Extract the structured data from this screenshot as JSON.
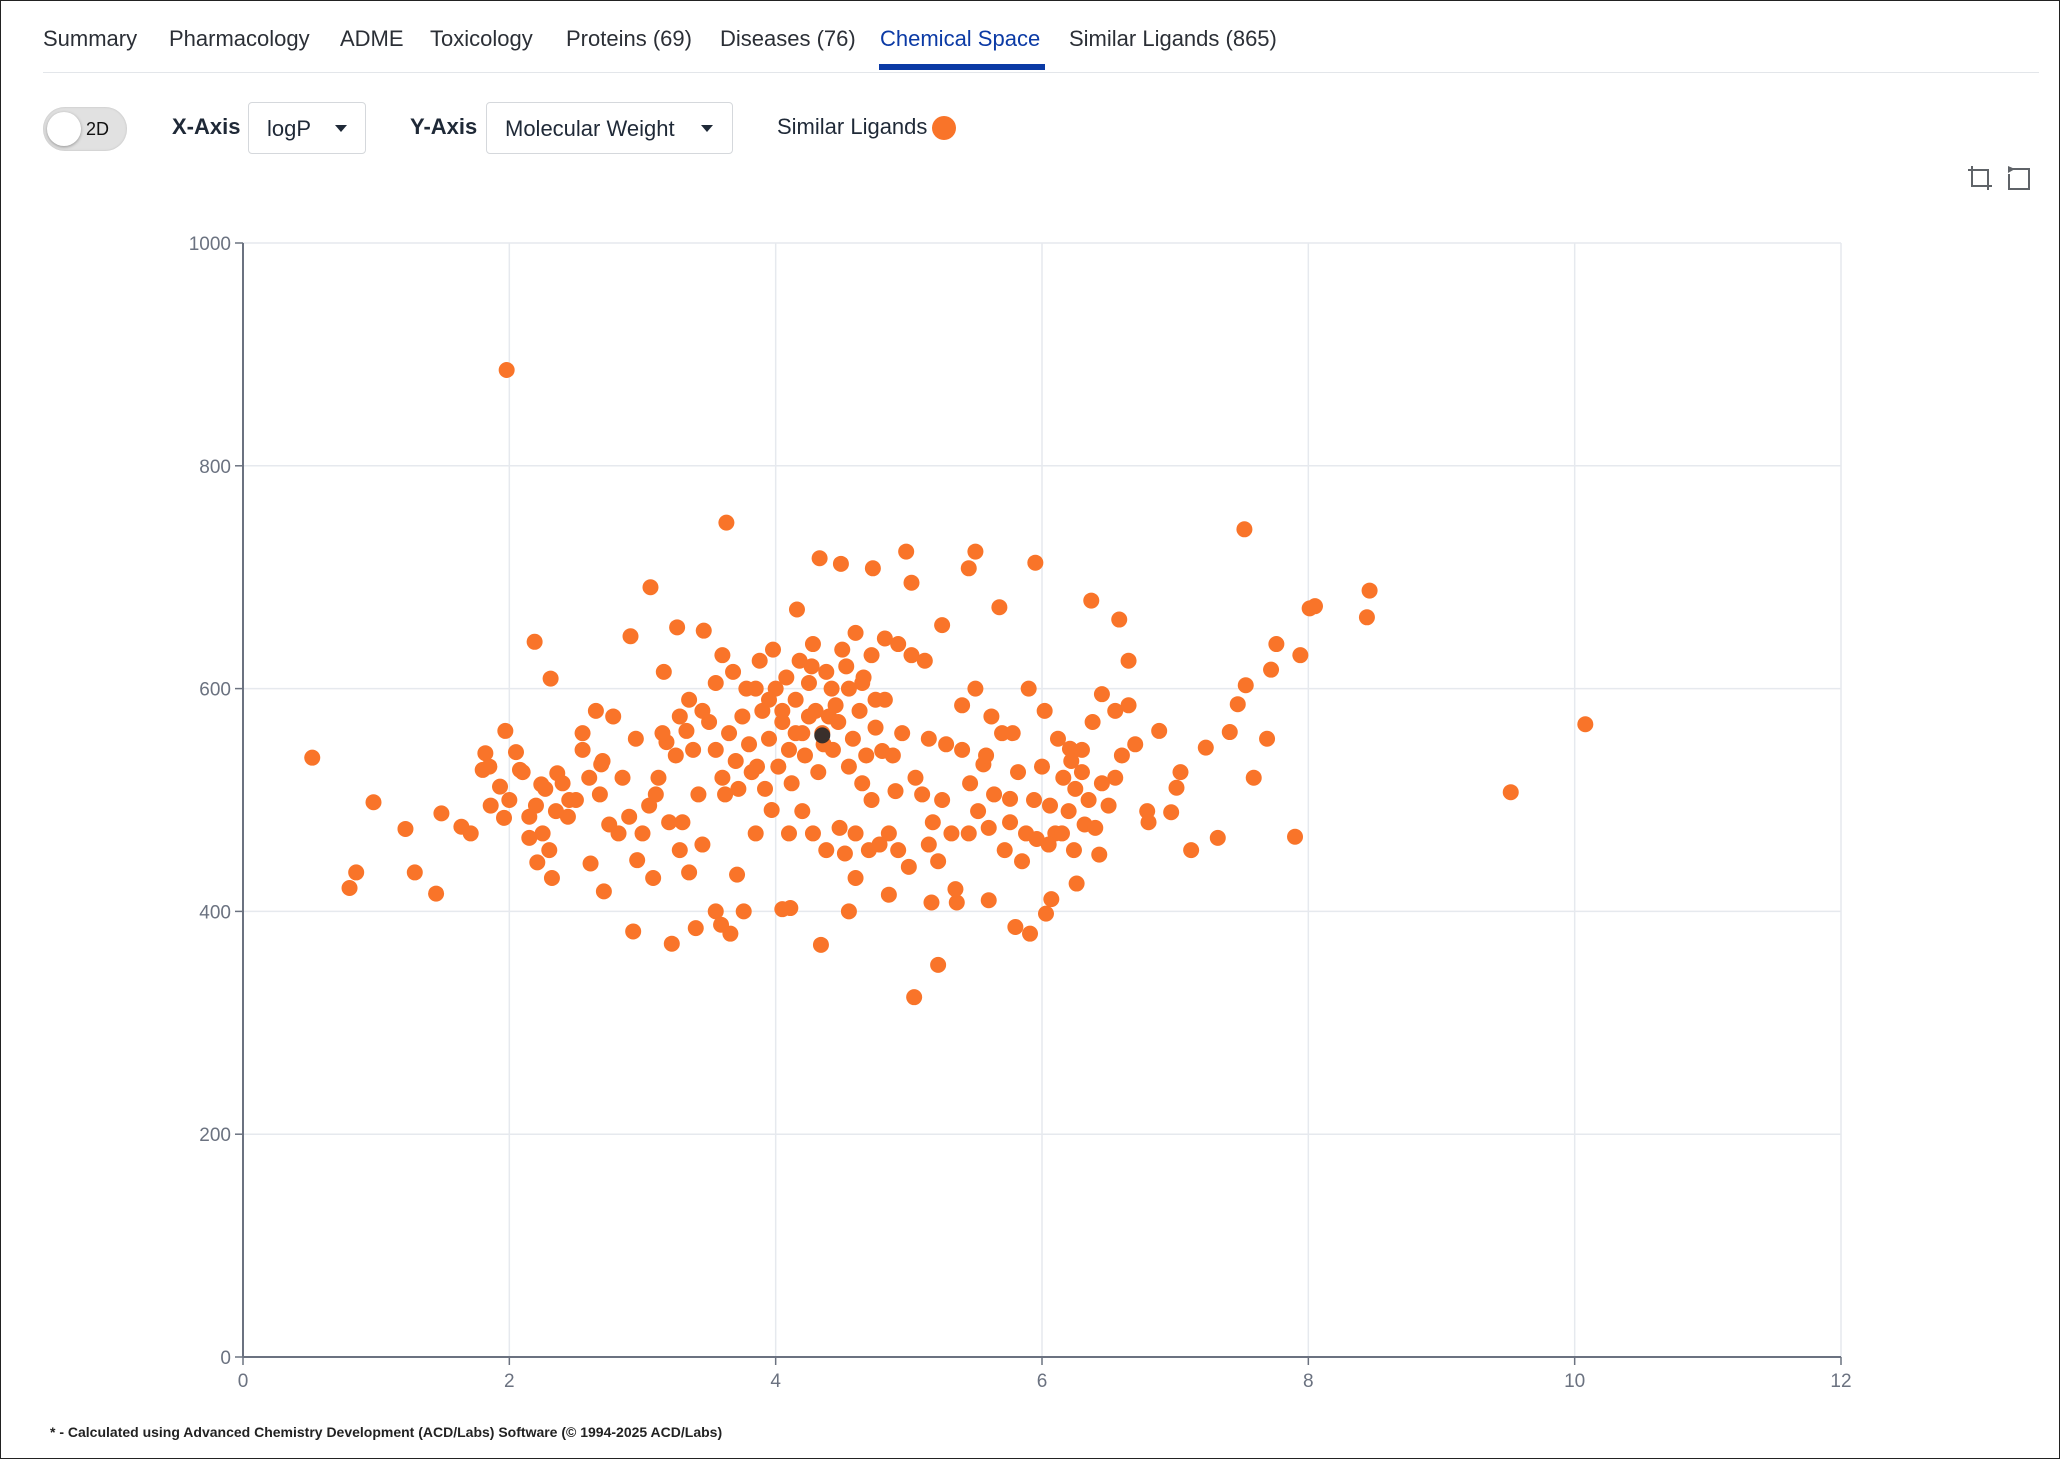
{
  "tabs": [
    {
      "label": "Summary",
      "active": false
    },
    {
      "label": "Pharmacology",
      "active": false
    },
    {
      "label": "ADME",
      "active": false
    },
    {
      "label": "Toxicology",
      "active": false
    },
    {
      "label": "Proteins (69)",
      "active": false
    },
    {
      "label": "Diseases (76)",
      "active": false
    },
    {
      "label": "Chemical Space",
      "active": true
    },
    {
      "label": "Similar Ligands (865)",
      "active": false
    }
  ],
  "toolbar": {
    "toggle_label": "2D",
    "x_axis_label": "X-Axis",
    "x_axis_value": "logP",
    "y_axis_label": "Y-Axis",
    "y_axis_value": "Molecular Weight",
    "legend_label": "Similar Ligands"
  },
  "icons": {
    "zoom": "crop-zoom-icon",
    "reset": "zoom-reset-icon",
    "dropdown": "caret-down-icon"
  },
  "colors": {
    "accent": "#0b3aa5",
    "series": "#f97429",
    "highlight": "#3a2f2b",
    "grid": "#e6e9ee",
    "axis": "#6b7280"
  },
  "chart_data": {
    "type": "scatter",
    "xlabel": "",
    "ylabel": "",
    "xlim": [
      0,
      12
    ],
    "ylim": [
      0,
      1000
    ],
    "x_ticks": [
      "0",
      "2",
      "4",
      "6",
      "8",
      "10",
      "12"
    ],
    "y_ticks": [
      "0",
      "200",
      "400",
      "600",
      "800",
      "1000"
    ],
    "grid": true,
    "series": [
      {
        "name": "Similar Ligands",
        "points": [
          [
            0.52,
            538
          ],
          [
            0.8,
            421
          ],
          [
            0.85,
            435
          ],
          [
            0.98,
            498
          ],
          [
            1.22,
            474
          ],
          [
            1.29,
            435
          ],
          [
            1.45,
            416
          ],
          [
            1.49,
            488
          ],
          [
            1.64,
            476
          ],
          [
            1.71,
            470
          ],
          [
            1.8,
            527
          ],
          [
            1.82,
            542
          ],
          [
            1.86,
            495
          ],
          [
            1.93,
            512
          ],
          [
            1.96,
            484
          ],
          [
            1.97,
            562
          ],
          [
            1.98,
            886
          ],
          [
            2.05,
            543
          ],
          [
            2.08,
            527
          ],
          [
            2.15,
            466
          ],
          [
            2.19,
            642
          ],
          [
            2.21,
            444
          ],
          [
            2.24,
            514
          ],
          [
            2.3,
            455
          ],
          [
            2.31,
            609
          ],
          [
            2.32,
            430
          ],
          [
            2.36,
            524
          ],
          [
            2.44,
            485
          ],
          [
            2.55,
            560
          ],
          [
            2.61,
            443
          ],
          [
            2.65,
            580
          ],
          [
            2.69,
            532
          ],
          [
            2.71,
            418
          ],
          [
            2.78,
            575
          ],
          [
            2.91,
            647
          ],
          [
            2.93,
            382
          ],
          [
            2.96,
            446
          ],
          [
            3.06,
            691
          ],
          [
            3.08,
            430
          ],
          [
            3.16,
            615
          ],
          [
            3.22,
            371
          ],
          [
            3.26,
            655
          ],
          [
            3.3,
            480
          ],
          [
            3.4,
            385
          ],
          [
            3.46,
            652
          ],
          [
            3.55,
            400
          ],
          [
            3.59,
            388
          ],
          [
            3.63,
            749
          ],
          [
            3.66,
            380
          ],
          [
            3.71,
            433
          ],
          [
            3.76,
            400
          ],
          [
            3.85,
            470
          ],
          [
            3.97,
            491
          ],
          [
            4.05,
            402
          ],
          [
            4.11,
            403
          ],
          [
            4.16,
            671
          ],
          [
            4.27,
            620
          ],
          [
            4.33,
            717
          ],
          [
            4.34,
            370
          ],
          [
            4.4,
            575
          ],
          [
            4.49,
            712
          ],
          [
            4.52,
            452
          ],
          [
            4.55,
            400
          ],
          [
            4.6,
            430
          ],
          [
            4.66,
            610
          ],
          [
            4.73,
            708
          ],
          [
            4.8,
            544
          ],
          [
            4.85,
            415
          ],
          [
            4.9,
            508
          ],
          [
            4.98,
            723
          ],
          [
            5.02,
            695
          ],
          [
            5.04,
            323
          ],
          [
            5.12,
            625
          ],
          [
            5.17,
            408
          ],
          [
            5.22,
            352
          ],
          [
            5.25,
            657
          ],
          [
            5.36,
            408
          ],
          [
            5.45,
            708
          ],
          [
            5.5,
            723
          ],
          [
            5.56,
            532
          ],
          [
            5.6,
            410
          ],
          [
            5.68,
            673
          ],
          [
            5.76,
            501
          ],
          [
            5.8,
            386
          ],
          [
            5.91,
            380
          ],
          [
            5.95,
            713
          ],
          [
            6.03,
            398
          ],
          [
            6.07,
            411
          ],
          [
            6.12,
            555
          ],
          [
            6.21,
            546
          ],
          [
            6.26,
            425
          ],
          [
            6.32,
            478
          ],
          [
            6.37,
            679
          ],
          [
            6.43,
            451
          ],
          [
            6.55,
            520
          ],
          [
            6.58,
            662
          ],
          [
            6.65,
            625
          ],
          [
            6.79,
            490
          ],
          [
            6.88,
            562
          ],
          [
            6.97,
            489
          ],
          [
            7.01,
            511
          ],
          [
            7.04,
            525
          ],
          [
            7.12,
            455
          ],
          [
            7.23,
            547
          ],
          [
            7.32,
            466
          ],
          [
            7.41,
            561
          ],
          [
            7.47,
            586
          ],
          [
            7.52,
            743
          ],
          [
            7.53,
            603
          ],
          [
            7.59,
            520
          ],
          [
            7.69,
            555
          ],
          [
            7.72,
            617
          ],
          [
            7.76,
            640
          ],
          [
            7.9,
            467
          ],
          [
            7.94,
            630
          ],
          [
            8.01,
            672
          ],
          [
            8.05,
            674
          ],
          [
            8.44,
            664
          ],
          [
            8.46,
            688
          ],
          [
            9.52,
            507
          ],
          [
            10.08,
            568
          ],
          [
            1.85,
            530
          ],
          [
            2.0,
            500
          ],
          [
            2.1,
            525
          ],
          [
            2.2,
            495
          ],
          [
            2.27,
            510
          ],
          [
            2.4,
            515
          ],
          [
            2.5,
            500
          ],
          [
            2.6,
            520
          ],
          [
            2.68,
            505
          ],
          [
            2.75,
            478
          ],
          [
            2.82,
            470
          ],
          [
            2.9,
            485
          ],
          [
            3.0,
            470
          ],
          [
            3.05,
            495
          ],
          [
            3.12,
            520
          ],
          [
            3.18,
            552
          ],
          [
            3.25,
            540
          ],
          [
            3.33,
            562
          ],
          [
            3.38,
            545
          ],
          [
            3.42,
            505
          ],
          [
            3.5,
            570
          ],
          [
            3.55,
            545
          ],
          [
            3.6,
            520
          ],
          [
            3.65,
            560
          ],
          [
            3.7,
            535
          ],
          [
            3.75,
            575
          ],
          [
            3.8,
            550
          ],
          [
            3.86,
            530
          ],
          [
            3.9,
            580
          ],
          [
            3.95,
            555
          ],
          [
            4.0,
            600
          ],
          [
            4.05,
            570
          ],
          [
            4.1,
            545
          ],
          [
            4.15,
            590
          ],
          [
            4.2,
            560
          ],
          [
            4.25,
            605
          ],
          [
            4.3,
            580
          ],
          [
            4.36,
            550
          ],
          [
            4.42,
            600
          ],
          [
            4.47,
            570
          ],
          [
            4.53,
            620
          ],
          [
            4.58,
            555
          ],
          [
            4.63,
            580
          ],
          [
            4.68,
            540
          ],
          [
            4.75,
            565
          ],
          [
            4.82,
            590
          ],
          [
            4.88,
            540
          ],
          [
            4.95,
            560
          ],
          [
            5.05,
            520
          ],
          [
            5.1,
            505
          ],
          [
            5.18,
            480
          ],
          [
            5.25,
            500
          ],
          [
            5.32,
            470
          ],
          [
            5.4,
            545
          ],
          [
            5.46,
            515
          ],
          [
            5.52,
            490
          ],
          [
            5.58,
            540
          ],
          [
            5.64,
            505
          ],
          [
            5.7,
            560
          ],
          [
            5.76,
            480
          ],
          [
            5.82,
            525
          ],
          [
            5.88,
            470
          ],
          [
            5.94,
            500
          ],
          [
            6.0,
            530
          ],
          [
            6.06,
            495
          ],
          [
            6.1,
            470
          ],
          [
            6.16,
            520
          ],
          [
            6.2,
            490
          ],
          [
            6.25,
            510
          ],
          [
            6.3,
            525
          ],
          [
            6.35,
            500
          ],
          [
            6.4,
            475
          ],
          [
            6.45,
            515
          ],
          [
            6.5,
            495
          ],
          [
            6.6,
            540
          ],
          [
            6.7,
            550
          ],
          [
            6.8,
            480
          ],
          [
            3.1,
            505
          ],
          [
            3.2,
            480
          ],
          [
            3.28,
            455
          ],
          [
            3.35,
            435
          ],
          [
            3.45,
            460
          ],
          [
            3.62,
            505
          ],
          [
            3.72,
            510
          ],
          [
            3.82,
            525
          ],
          [
            3.92,
            510
          ],
          [
            4.02,
            530
          ],
          [
            4.12,
            515
          ],
          [
            4.22,
            540
          ],
          [
            4.32,
            525
          ],
          [
            4.43,
            545
          ],
          [
            4.55,
            530
          ],
          [
            4.65,
            515
          ],
          [
            4.72,
            500
          ],
          [
            4.85,
            470
          ],
          [
            4.92,
            455
          ],
          [
            5.0,
            440
          ],
          [
            5.15,
            460
          ],
          [
            5.22,
            445
          ],
          [
            5.35,
            420
          ],
          [
            5.45,
            470
          ],
          [
            5.6,
            475
          ],
          [
            5.72,
            455
          ],
          [
            5.85,
            445
          ],
          [
            5.96,
            465
          ],
          [
            6.05,
            460
          ],
          [
            6.15,
            470
          ],
          [
            6.24,
            455
          ],
          [
            4.1,
            470
          ],
          [
            4.2,
            490
          ],
          [
            4.28,
            470
          ],
          [
            4.38,
            455
          ],
          [
            4.48,
            475
          ],
          [
            4.6,
            470
          ],
          [
            4.7,
            455
          ],
          [
            4.78,
            460
          ],
          [
            3.55,
            605
          ],
          [
            3.6,
            630
          ],
          [
            3.68,
            615
          ],
          [
            3.78,
            600
          ],
          [
            3.88,
            625
          ],
          [
            3.98,
            635
          ],
          [
            4.08,
            610
          ],
          [
            4.18,
            625
          ],
          [
            4.28,
            640
          ],
          [
            4.38,
            615
          ],
          [
            4.5,
            635
          ],
          [
            4.6,
            650
          ],
          [
            4.72,
            630
          ],
          [
            4.82,
            645
          ],
          [
            4.92,
            640
          ],
          [
            5.02,
            630
          ],
          [
            3.45,
            580
          ],
          [
            3.35,
            590
          ],
          [
            3.28,
            575
          ],
          [
            3.15,
            560
          ],
          [
            2.95,
            555
          ],
          [
            2.85,
            520
          ],
          [
            2.7,
            535
          ],
          [
            2.55,
            545
          ],
          [
            2.45,
            500
          ],
          [
            2.35,
            490
          ],
          [
            2.25,
            470
          ],
          [
            2.15,
            485
          ],
          [
            4.35,
            560
          ],
          [
            4.45,
            585
          ],
          [
            4.25,
            575
          ],
          [
            4.15,
            560
          ],
          [
            4.05,
            580
          ],
          [
            3.95,
            590
          ],
          [
            3.85,
            600
          ],
          [
            4.55,
            600
          ],
          [
            4.65,
            605
          ],
          [
            4.75,
            590
          ],
          [
            6.45,
            595
          ],
          [
            6.55,
            580
          ],
          [
            6.65,
            585
          ],
          [
            6.38,
            570
          ],
          [
            6.3,
            545
          ],
          [
            6.22,
            535
          ],
          [
            5.4,
            585
          ],
          [
            5.5,
            600
          ],
          [
            5.62,
            575
          ],
          [
            5.78,
            560
          ],
          [
            5.9,
            600
          ],
          [
            6.02,
            580
          ],
          [
            5.28,
            550
          ],
          [
            5.15,
            555
          ]
        ]
      }
    ],
    "highlight_point": [
      4.35,
      558
    ]
  },
  "footnote": "* - Calculated using Advanced Chemistry Development (ACD/Labs) Software (© 1994-2025 ACD/Labs)"
}
